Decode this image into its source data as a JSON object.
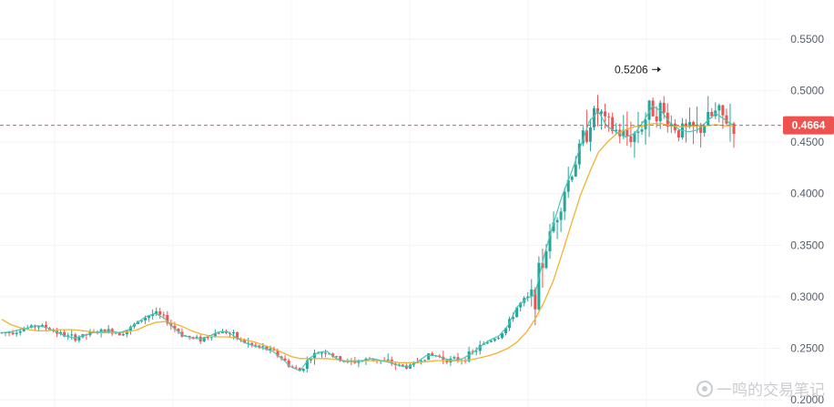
{
  "chart_data": {
    "type": "candlestick",
    "y_ticks": [
      "0.5500",
      "0.5000",
      "0.4500",
      "0.4000",
      "0.3500",
      "0.3000",
      "0.2500",
      "0.2000"
    ],
    "ylim": [
      0.193,
      0.588
    ],
    "current_price": 0.4664,
    "current_price_label": "0.4664",
    "peak_label": "0.5206",
    "peak_value": 0.5206,
    "grid": true,
    "colors": {
      "up": "#26a69a",
      "down": "#ef5350",
      "ma_fast": "#4fc3b4",
      "ma_slow": "#f2b233",
      "price_tag": "#ef5350"
    },
    "ma_fast": [
      0.265,
      0.266,
      0.268,
      0.27,
      0.272,
      0.27,
      0.266,
      0.262,
      0.26,
      0.262,
      0.265,
      0.266,
      0.267,
      0.265,
      0.268,
      0.275,
      0.281,
      0.284,
      0.279,
      0.27,
      0.263,
      0.26,
      0.259,
      0.262,
      0.266,
      0.266,
      0.26,
      0.255,
      0.252,
      0.25,
      0.247,
      0.24,
      0.232,
      0.228,
      0.24,
      0.246,
      0.247,
      0.24,
      0.237,
      0.237,
      0.238,
      0.24,
      0.238,
      0.236,
      0.233,
      0.232,
      0.237,
      0.243,
      0.243,
      0.24,
      0.238,
      0.24,
      0.245,
      0.252,
      0.258,
      0.262,
      0.272,
      0.29,
      0.298,
      0.302,
      0.34,
      0.37,
      0.398,
      0.42,
      0.445,
      0.47,
      0.48,
      0.465,
      0.46,
      0.455,
      0.458,
      0.47,
      0.485,
      0.48,
      0.468,
      0.462,
      0.46,
      0.462,
      0.47,
      0.478,
      0.472,
      0.466
    ],
    "ma_slow": [
      0.278,
      0.273,
      0.27,
      0.268,
      0.267,
      0.267,
      0.268,
      0.268,
      0.268,
      0.267,
      0.266,
      0.265,
      0.265,
      0.265,
      0.266,
      0.268,
      0.272,
      0.275,
      0.276,
      0.274,
      0.271,
      0.267,
      0.264,
      0.262,
      0.261,
      0.261,
      0.26,
      0.258,
      0.256,
      0.253,
      0.25,
      0.246,
      0.242,
      0.24,
      0.24,
      0.24,
      0.24,
      0.239,
      0.238,
      0.238,
      0.238,
      0.238,
      0.238,
      0.237,
      0.236,
      0.236,
      0.236,
      0.237,
      0.238,
      0.238,
      0.238,
      0.238,
      0.239,
      0.241,
      0.243,
      0.246,
      0.25,
      0.256,
      0.265,
      0.278,
      0.295,
      0.315,
      0.342,
      0.37,
      0.398,
      0.42,
      0.44,
      0.45,
      0.458,
      0.462,
      0.465,
      0.466,
      0.468,
      0.468,
      0.466,
      0.465,
      0.465,
      0.466,
      0.466,
      0.467,
      0.466,
      0.466
    ]
  },
  "watermark": {
    "text": "一鸣的交易笔记"
  }
}
